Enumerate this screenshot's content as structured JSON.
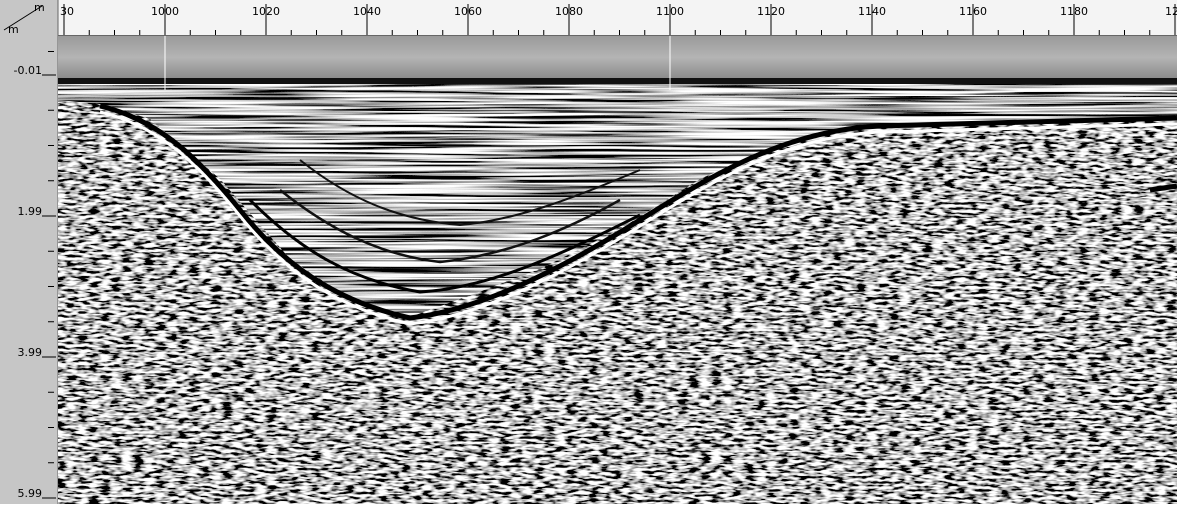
{
  "corner": {
    "top": "m",
    "bottom": "m"
  },
  "top_ruler": {
    "labels": [
      "30",
      "1000",
      "1020",
      "1040",
      "1060",
      "1080",
      "1100",
      "1120",
      "1140",
      "1160",
      "1180",
      "12"
    ]
  },
  "left_ruler": {
    "labels": [
      "-0.01",
      "1.99",
      "3.99",
      "5.99"
    ]
  }
}
